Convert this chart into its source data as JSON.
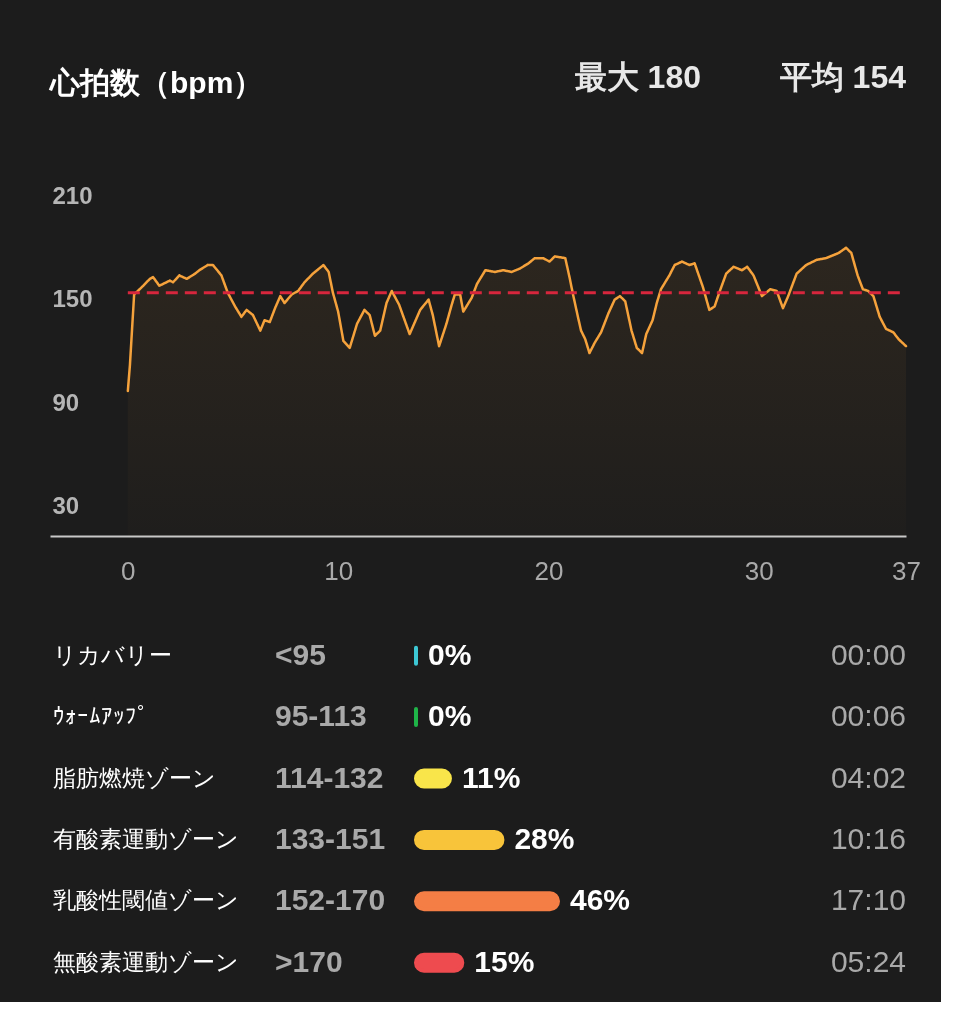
{
  "chart_data": [
    {
      "type": "area",
      "title": "心拍数（bpm）",
      "annotations": [
        "最大 180",
        "平均 154"
      ],
      "x": [
        0,
        0.1,
        0.3,
        0.65,
        1.05,
        1.2,
        1.5,
        2.0,
        2.15,
        2.45,
        2.8,
        3.2,
        3.4,
        3.8,
        4.05,
        4.45,
        4.75,
        5.1,
        5.4,
        5.65,
        5.95,
        6.3,
        6.5,
        6.75,
        7.0,
        7.25,
        7.45,
        7.8,
        8.1,
        8.4,
        8.8,
        9.3,
        9.55,
        9.75,
        10.0,
        10.25,
        10.55,
        10.9,
        11.25,
        11.5,
        11.75,
        12.0,
        12.3,
        12.55,
        12.9,
        13.4,
        13.9,
        14.3,
        14.5,
        14.8,
        15.15,
        15.4,
        15.55,
        15.8,
        15.95,
        16.35,
        16.6,
        17.0,
        17.45,
        17.85,
        18.25,
        18.65,
        19.05,
        19.35,
        19.75,
        20.05,
        20.3,
        20.8,
        21.0,
        21.15,
        21.4,
        21.55,
        21.75,
        21.95,
        22.2,
        22.5,
        22.85,
        23.15,
        23.4,
        23.65,
        23.95,
        24.2,
        24.45,
        24.65,
        24.95,
        25.15,
        25.35,
        25.75,
        26.0,
        26.35,
        26.7,
        26.95,
        27.35,
        27.65,
        27.9,
        28.15,
        28.45,
        28.8,
        29.2,
        29.45,
        29.75,
        30.15,
        30.55,
        30.85,
        31.15,
        31.4,
        31.8,
        32.25,
        32.75,
        33.2,
        33.8,
        34.15,
        34.4,
        34.7,
        34.95,
        35.2,
        35.45,
        35.75,
        36.05,
        36.4,
        36.65,
        37.0
      ],
      "series": [
        {
          "color": "#f5a23c",
          "values": [
            97,
            112,
            153,
            157,
            162,
            163,
            158,
            161,
            160,
            164,
            162,
            165,
            167,
            170,
            170,
            164,
            154,
            146,
            140,
            144,
            141,
            132,
            138,
            137,
            145,
            152,
            148,
            153,
            155,
            160,
            165,
            170,
            166,
            154,
            143,
            126,
            122,
            136,
            144,
            141,
            129,
            132,
            148,
            155,
            147,
            130,
            144,
            150,
            141,
            123,
            136,
            147,
            153,
            153,
            143,
            151,
            159,
            167,
            166,
            167,
            166,
            168,
            171,
            174,
            174,
            172,
            175,
            174,
            163,
            154,
            140,
            132,
            127,
            119,
            125,
            131,
            142,
            150,
            152,
            149,
            132,
            122,
            119,
            130,
            138,
            148,
            156,
            164,
            170,
            172,
            170,
            171,
            157,
            144,
            146,
            155,
            165,
            169,
            167,
            169,
            164,
            152,
            156,
            155,
            145,
            152,
            165,
            170,
            173,
            174,
            177,
            180,
            177,
            164,
            156,
            155,
            152,
            140,
            133,
            131,
            127,
            123
          ]
        }
      ],
      "xlim": [
        -3.7,
        37
      ],
      "xticks": [
        0,
        10,
        20,
        30,
        37
      ],
      "ylim": [
        13,
        210
      ],
      "yticks": [
        30,
        90,
        150,
        210
      ],
      "ref_lines": [
        {
          "axis": "y",
          "value": 154,
          "color": "#d7263d",
          "line_style": "dashed"
        }
      ]
    },
    {
      "type": "bar",
      "orientation": "horizontal",
      "categories": [
        "リカバリー",
        "ｳｫｰﾑｱｯﾌﾟ",
        "脂肪燃焼ゾーン",
        "有酸素運動ゾーン",
        "乳酸性閾値ゾーン",
        "無酸素運動ゾーン"
      ],
      "y2_categories": [
        "<95",
        "95-113",
        "114-132",
        "133-151",
        "152-170",
        ">170"
      ],
      "values": [
        0,
        0,
        11,
        28,
        46,
        15
      ],
      "colors": [
        "#3dc7d4",
        "#1fb448",
        "#f9e54a",
        "#f8c43a",
        "#f47e45",
        "#ee4b4f"
      ],
      "value_labels": [
        "0%",
        "0%",
        "11%",
        "28%",
        "46%",
        "15%"
      ],
      "annotations": [
        "00:00",
        "00:06",
        "04:02",
        "10:16",
        "17:10",
        "05:24"
      ],
      "tick_labels": "y"
    }
  ]
}
